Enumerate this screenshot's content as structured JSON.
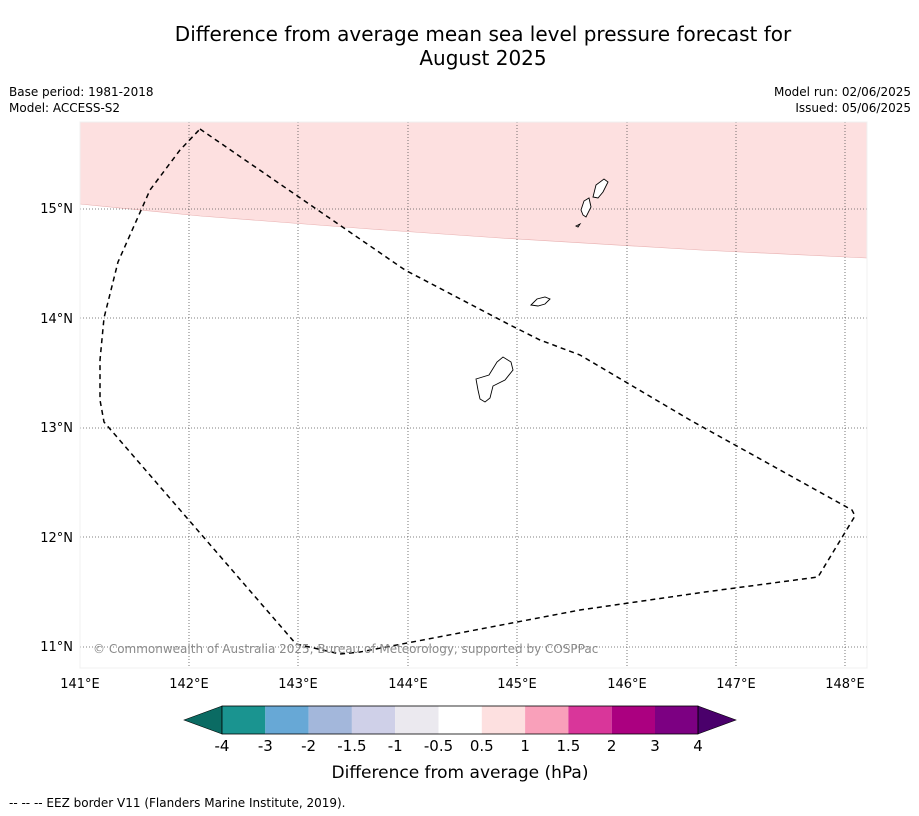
{
  "title_line1": "Difference from average mean sea level pressure forecast for",
  "title_line2": "August 2025",
  "base_period": "Base period: 1981-2018",
  "model": "Model: ACCESS-S2",
  "model_run": "Model run: 02/06/2025",
  "issued": "Issued: 05/06/2025",
  "copyright": "© Commonwealth of Australia 2025, Bureau of Meteorology, supported by COSPPac",
  "lon_ticks": [
    "141°E",
    "142°E",
    "143°E",
    "144°E",
    "145°E",
    "146°E",
    "147°E",
    "148°E"
  ],
  "lat_ticks": [
    "15°N",
    "14°N",
    "13°N",
    "12°N",
    "11°N"
  ],
  "colorbar": {
    "label": "Difference from average (hPa)",
    "tick_labels": [
      "-4",
      "-3",
      "-2",
      "-1.5",
      "-1",
      "-0.5",
      "0.5",
      "1",
      "1.5",
      "2",
      "3",
      "4"
    ],
    "colors": [
      "#1a9490",
      "#67a8d6",
      "#a3b7db",
      "#cfd0e8",
      "#ebe9ef",
      "#ffffff",
      "#fde0e0",
      "#f9a0ba",
      "#d9369a",
      "#ab0080",
      "#7c0082"
    ],
    "under_color": "#0b6b63",
    "over_color": "#4a006b"
  },
  "shaded_region": {
    "category": "0.5 to 1",
    "color": "#fde0e0"
  },
  "footer": "--  --  -- EEZ border V11 (Flanders Marine Institute, 2019)."
}
